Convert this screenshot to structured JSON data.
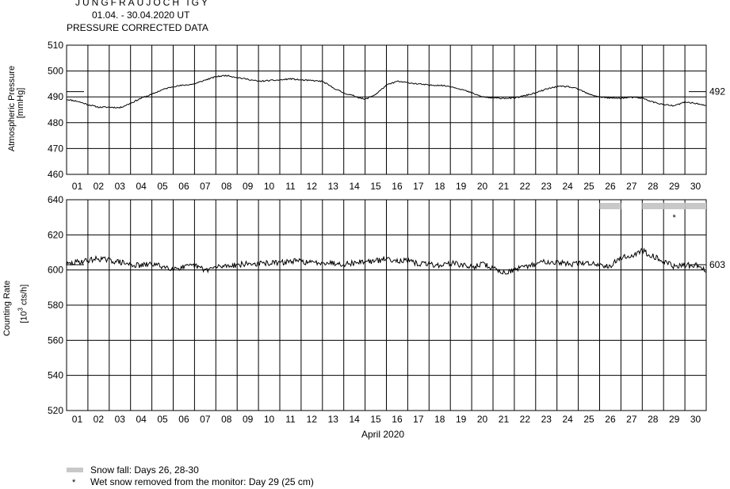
{
  "header": {
    "station": "JUNGFRAUJOCH IGY",
    "period": "01.04. - 30.04.2020  UT",
    "note": "PRESSURE CORRECTED DATA"
  },
  "legend": {
    "snow_text": "Snow fall: Days 26, 28-30",
    "wet_mark": "*",
    "wet_text": "Wet snow removed from the monitor: Day 29 (25 cm)"
  },
  "chart_data": [
    {
      "type": "line",
      "ylabel": "Atmospheric Pressure",
      "yunit": "[mmHg]",
      "ylim": [
        460,
        510
      ],
      "yticks": [
        460,
        470,
        480,
        490,
        500,
        510
      ],
      "xlim": [
        0,
        30
      ],
      "xticks": [
        "01",
        "02",
        "03",
        "04",
        "05",
        "06",
        "07",
        "08",
        "09",
        "10",
        "11",
        "12",
        "13",
        "14",
        "15",
        "16",
        "17",
        "18",
        "19",
        "20",
        "21",
        "22",
        "23",
        "24",
        "25",
        "26",
        "27",
        "28",
        "29",
        "30"
      ],
      "grid": true,
      "reference_value": 492,
      "series": [
        {
          "x": [
            0,
            0.5,
            1,
            1.5,
            2,
            2.5,
            3,
            3.5,
            4,
            4.5,
            5,
            5.5,
            6,
            6.5,
            7,
            7.5,
            8,
            8.5,
            9,
            9.5,
            10,
            10.5,
            11,
            11.5,
            12,
            12.5,
            13,
            13.5,
            14,
            14.5,
            15,
            15.5,
            16,
            16.5,
            17,
            17.5,
            18,
            18.5,
            19,
            19.5,
            20,
            20.5,
            21,
            21.5,
            22,
            22.5,
            23,
            23.5,
            24,
            24.5,
            25,
            25.5,
            26,
            26.5,
            27,
            27.5,
            28,
            28.5,
            29,
            29.5,
            30
          ],
          "values": [
            489,
            488.3,
            487,
            486,
            486,
            485.8,
            487.5,
            489.5,
            491,
            492.8,
            494,
            494.5,
            495,
            496.5,
            497.8,
            498.3,
            497.5,
            496.8,
            496,
            496.3,
            496.5,
            497,
            496.5,
            496.3,
            496,
            493.5,
            491.5,
            490.3,
            489,
            491,
            494.5,
            496,
            495.5,
            495,
            494.5,
            494.5,
            494,
            493,
            491.5,
            490,
            489.5,
            489.5,
            489.5,
            490.5,
            491.5,
            493,
            494,
            494,
            493,
            491,
            490,
            489.5,
            489.5,
            489.8,
            489.5,
            488,
            487,
            486.5,
            488,
            487.5,
            486.5
          ]
        }
      ]
    },
    {
      "type": "line",
      "ylabel": "Counting Rate",
      "yunit_pre": "[10",
      "yunit_sup": "3",
      "yunit_post": " cts/h]",
      "ylim": [
        520,
        640
      ],
      "yticks": [
        520,
        540,
        560,
        580,
        600,
        620,
        640
      ],
      "xlim": [
        0,
        30
      ],
      "xticks": [
        "01",
        "02",
        "03",
        "04",
        "05",
        "06",
        "07",
        "08",
        "09",
        "10",
        "11",
        "12",
        "13",
        "14",
        "15",
        "16",
        "17",
        "18",
        "19",
        "20",
        "21",
        "22",
        "23",
        "24",
        "25",
        "26",
        "27",
        "28",
        "29",
        "30"
      ],
      "xlabel": "April 2020",
      "grid": true,
      "reference_value": 603,
      "snow_days": [
        26,
        28,
        29,
        30
      ],
      "wet_snow_day": 29,
      "series": [
        {
          "x": [
            0,
            0.5,
            1,
            1.5,
            2,
            2.5,
            3,
            3.5,
            4,
            4.5,
            5,
            5.5,
            6,
            6.5,
            7,
            7.5,
            8,
            8.5,
            9,
            9.5,
            10,
            10.5,
            11,
            11.5,
            12,
            12.5,
            13,
            13.5,
            14,
            14.5,
            15,
            15.5,
            16,
            16.5,
            17,
            17.5,
            18,
            18.5,
            19,
            19.5,
            20,
            20.5,
            21,
            21.5,
            22,
            22.5,
            23,
            23.5,
            24,
            24.5,
            25,
            25.5,
            26,
            26.5,
            27,
            27.5,
            28,
            28.5,
            29,
            29.5,
            30
          ],
          "values": [
            603,
            604.5,
            605.5,
            606.5,
            605.5,
            604.5,
            603,
            602.5,
            603.5,
            602,
            601,
            601.5,
            602.5,
            600,
            601.5,
            602.5,
            603,
            603.5,
            603.5,
            604,
            604,
            605,
            605,
            604,
            604.5,
            604,
            603.5,
            604,
            605,
            605,
            606.5,
            605.5,
            605,
            603.5,
            603.5,
            602.5,
            604,
            603,
            601.5,
            603.5,
            601,
            598.5,
            600,
            601.5,
            603.5,
            605,
            604.5,
            603.5,
            603.5,
            604,
            603,
            602.5,
            607,
            608,
            611,
            608,
            605,
            602,
            602.5,
            603,
            599.5
          ]
        }
      ]
    }
  ]
}
